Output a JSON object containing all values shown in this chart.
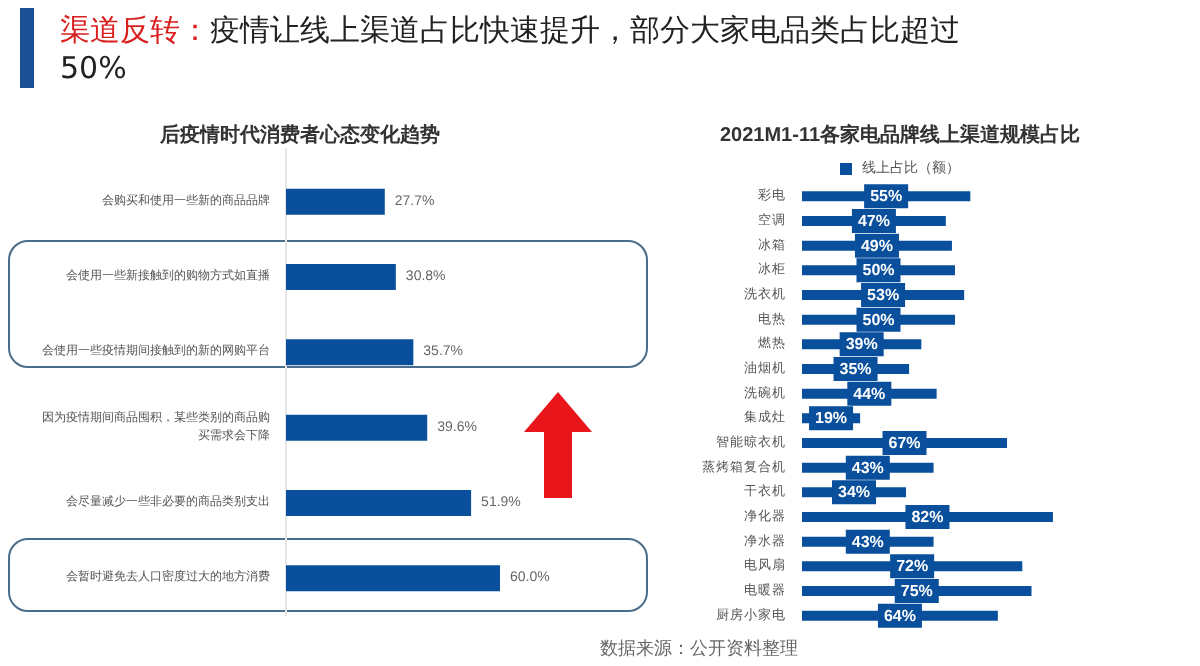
{
  "chart_data": [
    {
      "type": "bar",
      "orientation": "horizontal",
      "title": "后疫情时代消费者心态变化趋势",
      "annotations": [
        "渠道反转：",
        "疫情让线上渠道占比快速提升，部分大家电品类占比超过50%",
        "数据来源：公开资料整理"
      ],
      "categories": [
        "会购买和使用一些新的商品品牌",
        "会使用一些新接触到的购物方式如直播",
        "会使用一些疫情期间接触到的新的网购平台",
        "因为疫情期间商品囤积，某些类别的商品购买需求会下降",
        "会尽量减少一些非必要的商品类别支出",
        "会暂时避免去人口密度过大的地方消费"
      ],
      "values": [
        27.7,
        30.8,
        35.7,
        39.6,
        51.9,
        60.0
      ],
      "value_labels": [
        "27.7%",
        "30.8%",
        "35.7%",
        "39.6%",
        "51.9%",
        "60.0%"
      ],
      "color": "#0a4f9c"
    },
    {
      "type": "bar",
      "orientation": "horizontal",
      "title": "2021M1-11各家电品牌线上渠道规模占比",
      "legend": "top",
      "categories": [
        "彩电",
        "空调",
        "冰箱",
        "冰柜",
        "洗衣机",
        "电热",
        "燃热",
        "油烟机",
        "洗碗机",
        "集成灶",
        "智能晾衣机",
        "蒸烤箱复合机",
        "干衣机",
        "净化器",
        "净水器",
        "电风扇",
        "电暖器",
        "厨房小家电"
      ],
      "series": [
        {
          "name": "线上占比（额）",
          "color": "#0a4f9c",
          "values": [
            55,
            47,
            49,
            50,
            53,
            50,
            39,
            35,
            44,
            19,
            67,
            43,
            34,
            82,
            43,
            72,
            75,
            64
          ],
          "value_labels": [
            "55%",
            "47%",
            "49%",
            "50%",
            "53%",
            "50%",
            "39%",
            "35%",
            "44%",
            "19%",
            "67%",
            "43%",
            "34%",
            "82%",
            "43%",
            "72%",
            "75%",
            "64%"
          ]
        }
      ]
    }
  ]
}
